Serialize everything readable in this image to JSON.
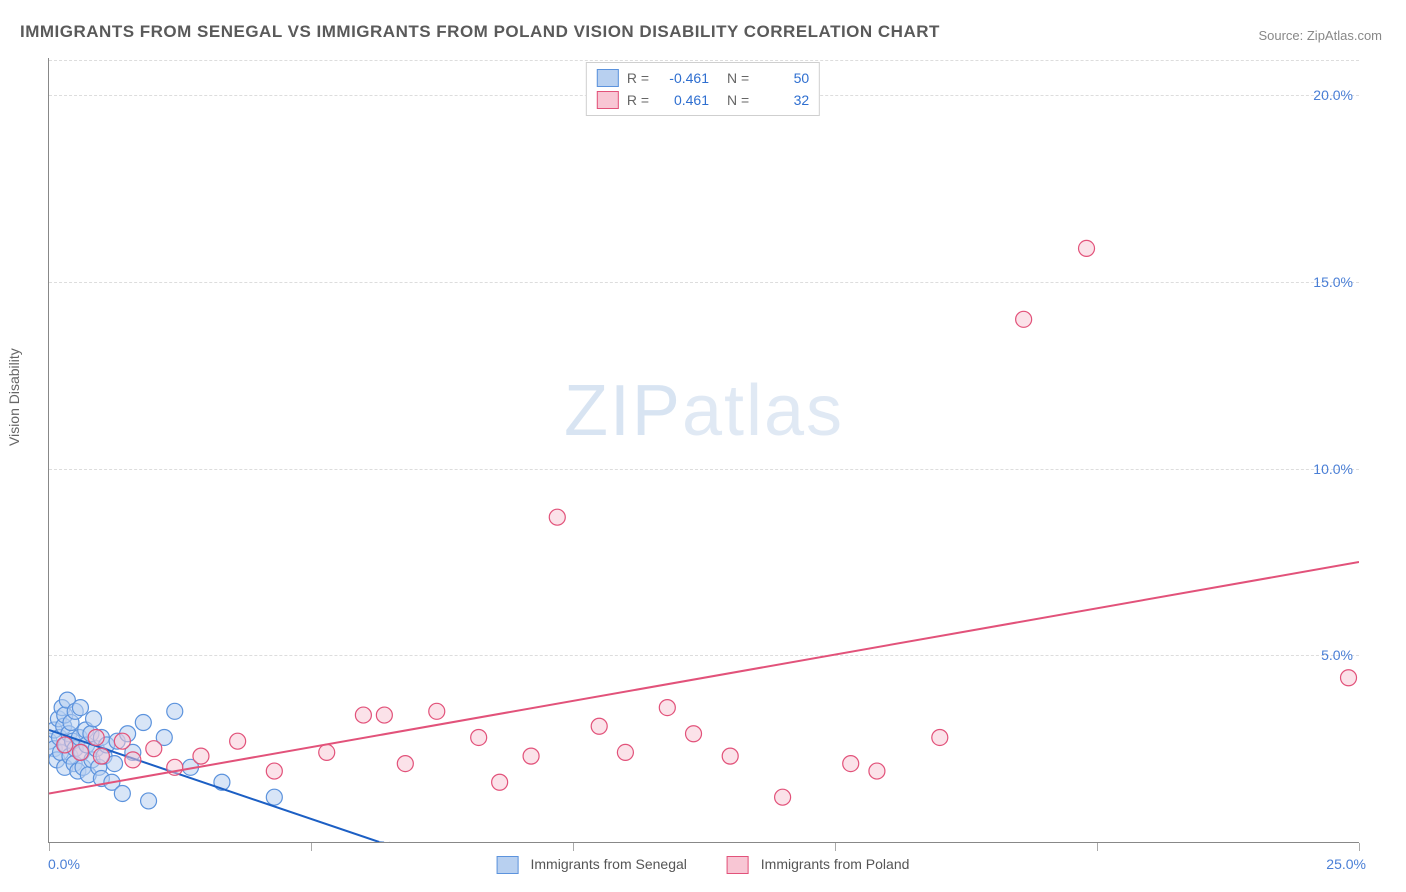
{
  "title": "IMMIGRANTS FROM SENEGAL VS IMMIGRANTS FROM POLAND VISION DISABILITY CORRELATION CHART",
  "source": "Source: ZipAtlas.com",
  "ylabel": "Vision Disability",
  "watermark_a": "ZIP",
  "watermark_b": "atlas",
  "chart": {
    "type": "scatter",
    "xlim": [
      0,
      25
    ],
    "ylim": [
      0,
      21
    ],
    "x_ticks": [
      0,
      5,
      10,
      15,
      20,
      25
    ],
    "x_tick_labels_shown": {
      "0": "0.0%",
      "25": "25.0%"
    },
    "y_ticks": [
      5,
      10,
      15,
      20
    ],
    "y_tick_labels": {
      "5": "5.0%",
      "10": "10.0%",
      "15": "15.0%",
      "20": "20.0%"
    },
    "background_color": "#ffffff",
    "grid_color": "#dddddd",
    "axis_color": "#888888",
    "tick_label_color": "#4a7fd6",
    "marker_radius": 8,
    "marker_stroke_width": 1.2,
    "series": [
      {
        "name": "Immigrants from Senegal",
        "color_fill": "#b8d0f0",
        "color_stroke": "#5c93dd",
        "fill_opacity": 0.55,
        "trend": {
          "x1": 0,
          "y1": 3.0,
          "x2": 6.3,
          "y2": 0.0,
          "color": "#1c5fc4",
          "width": 2,
          "extend_dash_to_x": 9.0
        },
        "R": "-0.461",
        "N": "50",
        "points": [
          [
            0.0,
            2.7
          ],
          [
            0.1,
            3.0
          ],
          [
            0.1,
            2.5
          ],
          [
            0.15,
            2.2
          ],
          [
            0.18,
            3.3
          ],
          [
            0.2,
            2.8
          ],
          [
            0.22,
            2.4
          ],
          [
            0.25,
            3.6
          ],
          [
            0.28,
            3.1
          ],
          [
            0.3,
            2.0
          ],
          [
            0.3,
            3.4
          ],
          [
            0.32,
            2.6
          ],
          [
            0.35,
            3.8
          ],
          [
            0.38,
            2.9
          ],
          [
            0.4,
            2.3
          ],
          [
            0.42,
            3.2
          ],
          [
            0.45,
            2.7
          ],
          [
            0.48,
            2.1
          ],
          [
            0.5,
            3.5
          ],
          [
            0.5,
            2.5
          ],
          [
            0.55,
            1.9
          ],
          [
            0.58,
            2.8
          ],
          [
            0.6,
            3.6
          ],
          [
            0.62,
            2.4
          ],
          [
            0.65,
            2.0
          ],
          [
            0.7,
            3.0
          ],
          [
            0.72,
            2.6
          ],
          [
            0.75,
            1.8
          ],
          [
            0.8,
            2.9
          ],
          [
            0.82,
            2.2
          ],
          [
            0.85,
            3.3
          ],
          [
            0.9,
            2.5
          ],
          [
            0.95,
            2.0
          ],
          [
            1.0,
            1.7
          ],
          [
            1.0,
            2.8
          ],
          [
            1.05,
            2.3
          ],
          [
            1.1,
            2.6
          ],
          [
            1.2,
            1.6
          ],
          [
            1.25,
            2.1
          ],
          [
            1.3,
            2.7
          ],
          [
            1.4,
            1.3
          ],
          [
            1.5,
            2.9
          ],
          [
            1.6,
            2.4
          ],
          [
            1.8,
            3.2
          ],
          [
            1.9,
            1.1
          ],
          [
            2.2,
            2.8
          ],
          [
            2.4,
            3.5
          ],
          [
            2.7,
            2.0
          ],
          [
            3.3,
            1.6
          ],
          [
            4.3,
            1.2
          ]
        ]
      },
      {
        "name": "Immigrants from Poland",
        "color_fill": "#f8c6d4",
        "color_stroke": "#e2527a",
        "fill_opacity": 0.5,
        "trend": {
          "x1": 0,
          "y1": 1.3,
          "x2": 25,
          "y2": 7.5,
          "color": "#e2527a",
          "width": 2
        },
        "R": "0.461",
        "N": "32",
        "points": [
          [
            0.3,
            2.6
          ],
          [
            0.6,
            2.4
          ],
          [
            0.9,
            2.8
          ],
          [
            1.0,
            2.3
          ],
          [
            1.4,
            2.7
          ],
          [
            1.6,
            2.2
          ],
          [
            2.0,
            2.5
          ],
          [
            2.4,
            2.0
          ],
          [
            2.9,
            2.3
          ],
          [
            3.6,
            2.7
          ],
          [
            4.3,
            1.9
          ],
          [
            5.3,
            2.4
          ],
          [
            6.4,
            3.4
          ],
          [
            6.8,
            2.1
          ],
          [
            7.4,
            3.5
          ],
          [
            8.2,
            2.8
          ],
          [
            8.6,
            1.6
          ],
          [
            9.2,
            2.3
          ],
          [
            9.7,
            8.7
          ],
          [
            10.5,
            3.1
          ],
          [
            11.0,
            2.4
          ],
          [
            11.8,
            3.6
          ],
          [
            12.3,
            2.9
          ],
          [
            13.0,
            2.3
          ],
          [
            14.0,
            1.2
          ],
          [
            15.3,
            2.1
          ],
          [
            15.8,
            1.9
          ],
          [
            17.0,
            2.8
          ],
          [
            18.6,
            14.0
          ],
          [
            19.8,
            15.9
          ],
          [
            24.8,
            4.4
          ],
          [
            6.0,
            3.4
          ]
        ]
      }
    ]
  },
  "legend_top": {
    "label_R": "R =",
    "label_N": "N ="
  },
  "legend_bottom": {
    "items": [
      {
        "label": "Immigrants from Senegal",
        "fill": "#b8d0f0",
        "stroke": "#5c93dd"
      },
      {
        "label": "Immigrants from Poland",
        "fill": "#f8c6d4",
        "stroke": "#e2527a"
      }
    ]
  }
}
